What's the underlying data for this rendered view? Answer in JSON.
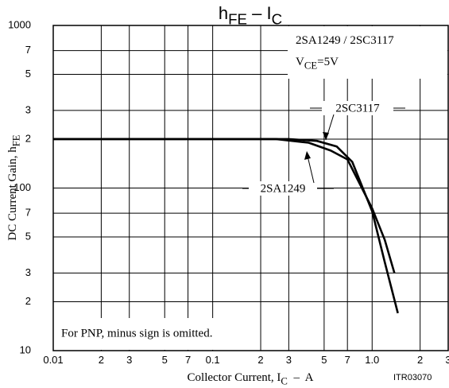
{
  "chart_data": {
    "type": "line",
    "title": [
      "h",
      "FE",
      " – I",
      "C"
    ],
    "x_label": [
      "Collector Current, I",
      "C",
      "  –  A"
    ],
    "y_label": [
      "DC Current Gain, h",
      "FE"
    ],
    "annotation": [
      "2SA1249 / 2SC3117"
    ],
    "condition": [
      "V",
      "CE",
      "=5V"
    ],
    "note": "For PNP, minus sign is omitted.",
    "code": "ITR03070",
    "log_x": true,
    "log_y": true,
    "grid": true,
    "xlim": [
      0.01,
      3
    ],
    "ylim": [
      10,
      1000
    ],
    "xticks": [
      {
        "value": 0.01,
        "label": "0.01"
      },
      {
        "value": 0.02,
        "label": "2"
      },
      {
        "value": 0.03,
        "label": "3"
      },
      {
        "value": 0.05,
        "label": "5"
      },
      {
        "value": 0.07,
        "label": "7"
      },
      0.1,
      {
        "value": 0.2,
        "label": "2"
      },
      {
        "value": 0.3,
        "label": "3"
      },
      {
        "value": 0.5,
        "label": "5"
      },
      {
        "value": 0.7,
        "label": "7"
      },
      {
        "value": 1,
        "label": "1.0"
      },
      2,
      3
    ],
    "yticks": [
      10,
      {
        "value": 20,
        "label": "2"
      },
      {
        "value": 30,
        "label": "3"
      },
      {
        "value": 50,
        "label": "5"
      },
      {
        "value": 70,
        "label": "7"
      },
      100,
      {
        "value": 200,
        "label": "2"
      },
      {
        "value": 300,
        "label": "3"
      },
      {
        "value": 500,
        "label": "5"
      },
      {
        "value": 700,
        "label": "7"
      },
      1000
    ],
    "series": [
      {
        "name": "2SC3117",
        "color": "#000000",
        "x": [
          0.01,
          0.1,
          0.3,
          0.45,
          0.6,
          0.75,
          1.0,
          1.2,
          1.45
        ],
        "values": [
          200,
          200,
          200,
          195,
          180,
          145,
          72,
          35,
          17
        ]
      },
      {
        "name": "2SA1249",
        "color": "#000000",
        "x": [
          0.01,
          0.1,
          0.25,
          0.4,
          0.55,
          0.7,
          1.0,
          1.2,
          1.38
        ],
        "values": [
          200,
          200,
          200,
          190,
          170,
          150,
          75,
          48,
          30
        ]
      }
    ]
  }
}
